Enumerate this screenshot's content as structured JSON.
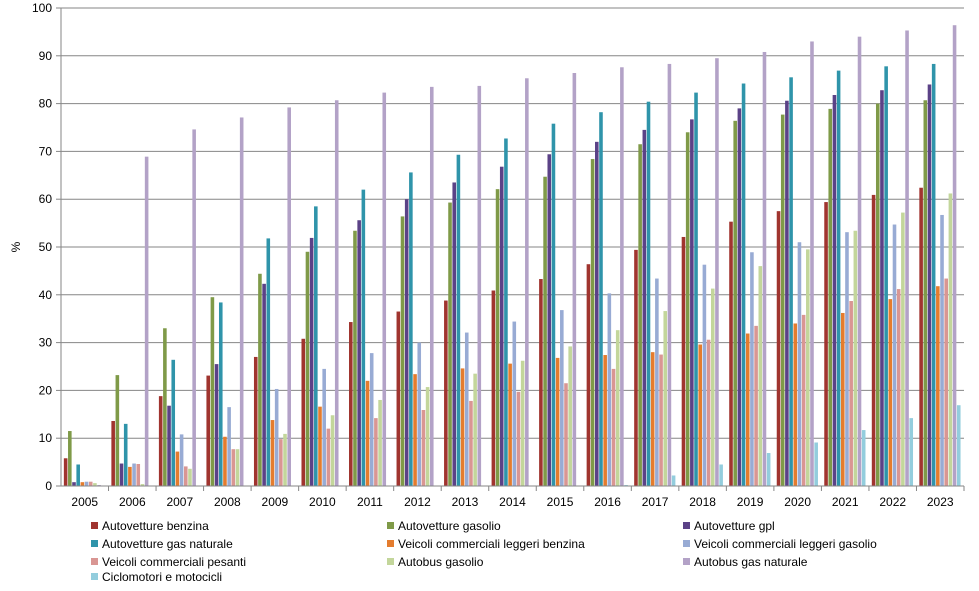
{
  "chart_data": {
    "type": "bar",
    "title": "",
    "xlabel": "",
    "ylabel": "%",
    "ylim": [
      0,
      100
    ],
    "yticks": [
      0,
      10,
      20,
      30,
      40,
      50,
      60,
      70,
      80,
      90,
      100
    ],
    "grid": "horizontal",
    "legend_position": "bottom",
    "categories": [
      "2005",
      "2006",
      "2007",
      "2008",
      "2009",
      "2010",
      "2011",
      "2012",
      "2013",
      "2014",
      "2015",
      "2016",
      "2017",
      "2018",
      "2019",
      "2020",
      "2021",
      "2022",
      "2023"
    ],
    "series": [
      {
        "name": "Autovetture benzina",
        "color": "#a0342f",
        "values": [
          5.8,
          13.6,
          18.8,
          23.1,
          27.0,
          30.8,
          34.3,
          36.5,
          38.8,
          40.9,
          43.3,
          46.4,
          49.4,
          52.1,
          55.3,
          57.5,
          59.4,
          60.9,
          62.4
        ]
      },
      {
        "name": "Autovetture gasolio",
        "color": "#7f9a48",
        "values": [
          11.5,
          23.2,
          33.0,
          39.5,
          44.4,
          49.0,
          53.4,
          56.4,
          59.3,
          62.1,
          64.7,
          68.4,
          71.5,
          74.0,
          76.4,
          77.7,
          78.9,
          80.0,
          80.7
        ]
      },
      {
        "name": "Autovetture gpl",
        "color": "#5b4287",
        "values": [
          0.8,
          4.7,
          16.8,
          25.5,
          42.3,
          51.9,
          55.6,
          60.0,
          63.5,
          66.8,
          69.4,
          72.0,
          74.5,
          76.7,
          79.0,
          80.6,
          81.8,
          82.8,
          84.0
        ]
      },
      {
        "name": "Autovetture gas naturale",
        "color": "#2f94aa",
        "values": [
          4.5,
          13.0,
          26.4,
          38.4,
          51.8,
          58.5,
          62.0,
          65.6,
          69.3,
          72.7,
          75.8,
          78.2,
          80.4,
          82.3,
          84.2,
          85.5,
          86.9,
          87.8,
          88.3
        ]
      },
      {
        "name": "Veicoli commerciali leggeri benzina",
        "color": "#e47c2e",
        "values": [
          0.8,
          4.0,
          7.2,
          10.3,
          13.8,
          16.6,
          22.0,
          23.4,
          24.6,
          25.6,
          26.8,
          27.4,
          28.0,
          29.6,
          31.9,
          34.0,
          36.2,
          39.1,
          41.8
        ]
      },
      {
        "name": "Veicoli commerciali leggeri gasolio",
        "color": "#98abd4",
        "values": [
          0.9,
          4.7,
          10.8,
          16.5,
          20.3,
          24.5,
          27.8,
          30.0,
          32.1,
          34.4,
          36.8,
          40.3,
          43.4,
          46.3,
          48.9,
          51.0,
          53.1,
          54.7,
          56.7
        ]
      },
      {
        "name": "Veicoli commerciali pesanti",
        "color": "#d99693",
        "values": [
          0.9,
          4.6,
          4.1,
          7.7,
          9.8,
          12.0,
          14.2,
          15.9,
          17.8,
          19.7,
          21.5,
          24.5,
          27.5,
          30.6,
          33.5,
          35.8,
          38.7,
          41.2,
          43.4
        ]
      },
      {
        "name": "Autobus gasolio",
        "color": "#c3d69b",
        "values": [
          0.6,
          0.4,
          3.6,
          7.7,
          10.9,
          14.8,
          18.0,
          20.7,
          23.5,
          26.2,
          29.2,
          32.6,
          36.6,
          41.3,
          46.0,
          49.5,
          53.4,
          57.2,
          61.2
        ]
      },
      {
        "name": "Autobus gas naturale",
        "color": "#b3a2c7",
        "values": [
          0.2,
          68.9,
          74.6,
          77.1,
          79.2,
          80.7,
          82.3,
          83.5,
          83.7,
          85.3,
          86.4,
          87.6,
          88.3,
          89.5,
          90.8,
          93.0,
          94.0,
          95.3,
          96.4
        ]
      },
      {
        "name": "Ciclomotori e motocicli",
        "color": "#93cddd",
        "values": [
          0.0,
          0.0,
          0.0,
          0.0,
          0.0,
          0.0,
          0.0,
          0.0,
          0.0,
          0.0,
          0.0,
          0.2,
          2.2,
          4.5,
          6.9,
          9.1,
          11.7,
          14.2,
          16.9
        ]
      }
    ]
  }
}
